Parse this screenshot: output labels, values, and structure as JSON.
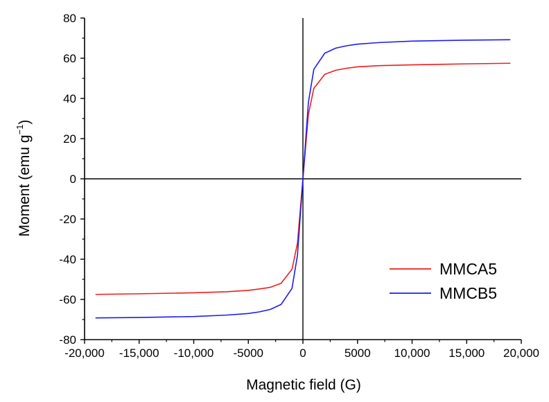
{
  "chart_data": {
    "type": "line",
    "title": "",
    "xlabel": "Magnetic field (G)",
    "ylabel_main": "Moment (emu g",
    "ylabel_sup": "−1",
    "ylabel_close": ")",
    "xlim": [
      -20000,
      20000
    ],
    "ylim": [
      -80,
      80
    ],
    "x_ticks": [
      -20000,
      -15000,
      -10000,
      -5000,
      0,
      5000,
      10000,
      15000,
      20000
    ],
    "x_tick_labels": [
      "-20,000",
      "-15,000",
      "-10,000",
      "-5000",
      "0",
      "5000",
      "10,000",
      "15,000",
      "20,000"
    ],
    "y_ticks": [
      -80,
      -60,
      -40,
      -20,
      0,
      20,
      40,
      60,
      80
    ],
    "y_tick_labels": [
      "-80",
      "-60",
      "-40",
      "-20",
      "0",
      "20",
      "40",
      "60",
      "80"
    ],
    "legend_position": "bottom-right",
    "series": [
      {
        "name": "MMCA5",
        "color": "#ee1c1c",
        "x": [
          -19000,
          -15000,
          -10000,
          -7000,
          -5000,
          -4000,
          -3000,
          -2000,
          -1000,
          -500,
          0,
          500,
          1000,
          2000,
          3000,
          4000,
          5000,
          7000,
          10000,
          15000,
          19000
        ],
        "y": [
          -57.5,
          -57.2,
          -56.7,
          -56.2,
          -55.5,
          -54.8,
          -54.0,
          -52.0,
          -45.0,
          -32.0,
          0,
          32.0,
          45.0,
          52.0,
          54.0,
          55.0,
          55.7,
          56.3,
          56.7,
          57.2,
          57.5
        ]
      },
      {
        "name": "MMCB5",
        "color": "#1c1cee",
        "x": [
          -19000,
          -15000,
          -10000,
          -7000,
          -5000,
          -4000,
          -3000,
          -2000,
          -1000,
          -500,
          0,
          500,
          1000,
          2000,
          3000,
          4000,
          5000,
          7000,
          10000,
          15000,
          19000
        ],
        "y": [
          -69.2,
          -69.0,
          -68.5,
          -67.8,
          -67.0,
          -66.2,
          -65.0,
          -62.5,
          -54.5,
          -38.0,
          0,
          38.0,
          54.5,
          62.5,
          65.0,
          66.2,
          67.0,
          67.8,
          68.5,
          69.0,
          69.2
        ]
      }
    ]
  }
}
